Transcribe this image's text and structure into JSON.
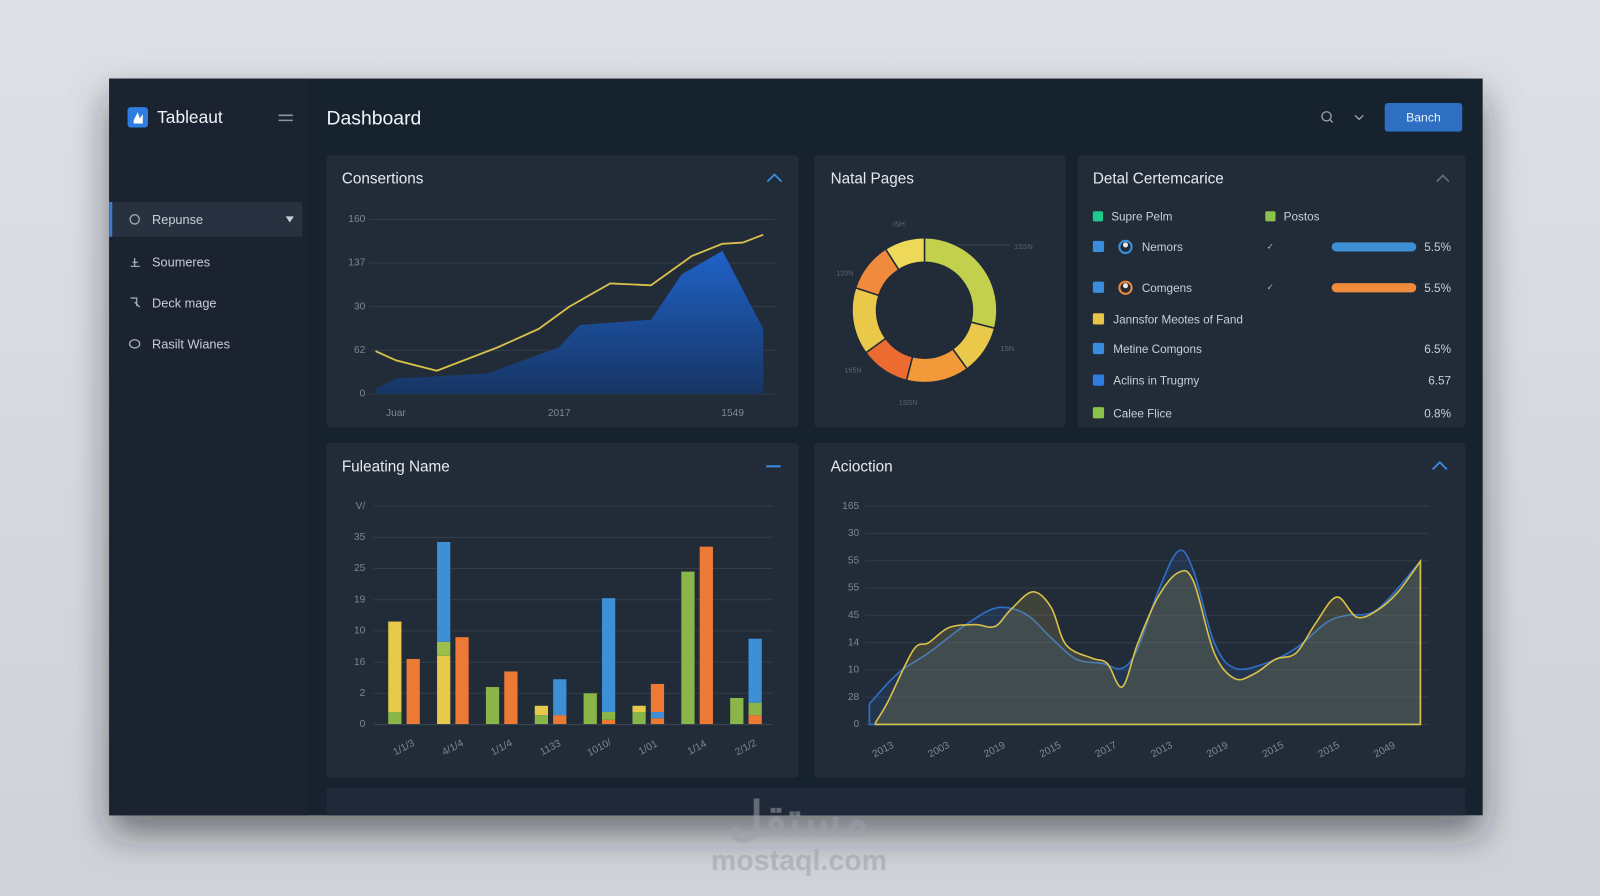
{
  "app": {
    "brand": "Tableaut",
    "title": "Dashboard",
    "button": "Banch"
  },
  "sidebar": {
    "items": [
      "Repunse",
      "Soumeres",
      "Deck mage",
      "Rasilt Wianes"
    ]
  },
  "chart_data": [
    {
      "type": "line",
      "title": "Consertions",
      "xlim": [
        0,
        38
      ],
      "xticks": [
        {
          "value": 2,
          "label": "Juar"
        },
        {
          "value": 18,
          "label": "2017"
        },
        {
          "value": 35,
          "label": "1549"
        }
      ],
      "ylim": [
        0,
        4
      ],
      "yticks": [
        0,
        {
          "value": 1,
          "label": "62"
        },
        {
          "value": 2,
          "label": "30"
        },
        {
          "value": 3,
          "label": "137"
        },
        {
          "value": 4,
          "label": "160"
        }
      ],
      "grid": true,
      "series": [
        {
          "color": "#1f62c9",
          "fill": true,
          "x": [
            0,
            2,
            6,
            11,
            18,
            20,
            27,
            30,
            34,
            38
          ],
          "values": [
            0.12,
            0.35,
            0.4,
            0.47,
            1.07,
            1.58,
            1.7,
            2.74,
            3.28,
            1.49
          ]
        },
        {
          "color": "#d8c04a",
          "x": [
            0,
            2,
            6,
            12,
            16,
            19,
            23,
            27,
            31,
            34,
            36,
            38
          ],
          "values": [
            0.98,
            0.77,
            0.53,
            1.07,
            1.49,
            2.0,
            2.53,
            2.49,
            3.16,
            3.44,
            3.47,
            3.65
          ]
        }
      ]
    },
    {
      "type": "pie",
      "title": "Natal Pages",
      "donut": true,
      "values": [
        29,
        11,
        14,
        11,
        15,
        11,
        9
      ],
      "colors": [
        "#c3d04e",
        "#e9c84a",
        "#f29a3a",
        "#ec6b30",
        "#e9c84a",
        "#f08a3c",
        "#edd85a"
      ],
      "annotations": [
        "ISH",
        "1SSN",
        "120N",
        "1SN",
        "165N",
        "1SSN"
      ]
    },
    {
      "type": "bar",
      "title": "Fuleating Name",
      "categories": [
        "1/1/3",
        "4/1/4",
        "1/1/4",
        "1133",
        "1010/",
        "1/01",
        "1/14",
        "2/1/2"
      ],
      "ylim": [
        0,
        7
      ],
      "yticks": [
        0,
        {
          "value": 1,
          "label": "2"
        },
        {
          "value": 2,
          "label": "16"
        },
        {
          "value": 3,
          "label": "10"
        },
        {
          "value": 4,
          "label": "19"
        },
        {
          "value": 5,
          "label": "25"
        },
        {
          "value": 6,
          "label": "35"
        },
        {
          "value": 7,
          "label": "V/"
        }
      ],
      "grid": true,
      "series": [
        {
          "color": "#8ab548",
          "stack": "left",
          "values": [
            0.4,
            0,
            1.2,
            0.3,
            1.0,
            0.4,
            4.9,
            0.85
          ]
        },
        {
          "color": "#e6c84a",
          "stack": "left",
          "values": [
            2.9,
            2.2,
            0,
            0.3,
            0,
            0.2,
            0,
            0
          ]
        },
        {
          "color": "#9bbf4a",
          "stack": "left",
          "values": [
            0,
            0.45,
            0,
            0,
            0,
            0,
            0,
            0
          ]
        },
        {
          "color": "#3d8fd6",
          "stack": "left",
          "values": [
            0,
            3.2,
            0,
            0,
            0,
            0,
            0,
            0
          ]
        },
        {
          "color": "#ec7a35",
          "stack": "right",
          "values": [
            2.1,
            2.8,
            1.7,
            0.3,
            0.15,
            0.2,
            5.7,
            0.3
          ]
        },
        {
          "color": "#8ab548",
          "stack": "right",
          "values": [
            0,
            0,
            0,
            0,
            0.25,
            0,
            0,
            0.4
          ]
        },
        {
          "color": "#3d8fd6",
          "stack": "right",
          "values": [
            0,
            0,
            0,
            1.15,
            3.65,
            0.2,
            0,
            2.05
          ]
        },
        {
          "color": "#ec7a35",
          "stack": "right",
          "values": [
            0,
            0,
            0,
            0,
            0,
            0.9,
            0,
            0
          ]
        }
      ]
    },
    {
      "type": "line",
      "title": "Acioction",
      "smooth": true,
      "xlim": [
        0,
        10
      ],
      "xticks": [
        {
          "value": 0.25,
          "label": "2013"
        },
        {
          "value": 1.25,
          "label": "2003"
        },
        {
          "value": 2.25,
          "label": "2019"
        },
        {
          "value": 3.25,
          "label": "2015"
        },
        {
          "value": 4.25,
          "label": "2017"
        },
        {
          "value": 5.25,
          "label": "2013"
        },
        {
          "value": 6.25,
          "label": "2019"
        },
        {
          "value": 7.25,
          "label": "2015"
        },
        {
          "value": 8.25,
          "label": "2015"
        },
        {
          "value": 9.25,
          "label": "2049"
        }
      ],
      "ylim": [
        0,
        8
      ],
      "yticks": [
        0,
        {
          "value": 1,
          "label": "28"
        },
        {
          "value": 2,
          "label": "10"
        },
        {
          "value": 3,
          "label": "14"
        },
        {
          "value": 4,
          "label": "45"
        },
        {
          "value": 5,
          "label": "55"
        },
        {
          "value": 6,
          "label": "55"
        },
        {
          "value": 7,
          "label": "30"
        },
        {
          "value": 8,
          "label": "165"
        }
      ],
      "grid": true,
      "series": [
        {
          "color": "#2f6fc8",
          "fill": true,
          "x": [
            0,
            0.51,
            1.06,
            1.61,
            2.16,
            2.53,
            2.89,
            3.26,
            3.72,
            4.18,
            4.54,
            4.82,
            5.18,
            5.55,
            5.82,
            6.19,
            6.56,
            7.11,
            7.66,
            8.21,
            8.57,
            9.12,
            9.89
          ],
          "values": [
            0.75,
            1.87,
            2.62,
            3.48,
            4.19,
            4.26,
            3.93,
            3.18,
            2.39,
            2.24,
            2.06,
            2.8,
            4.86,
            6.36,
            5.61,
            2.99,
            2.06,
            2.24,
            2.8,
            3.74,
            4.0,
            4.22,
            5.98
          ]
        },
        {
          "color": "#d8c04a",
          "fill": true,
          "x": [
            0.11,
            0.33,
            0.79,
            1.06,
            1.43,
            1.89,
            2.25,
            2.53,
            2.93,
            3.26,
            3.53,
            3.99,
            4.27,
            4.54,
            4.82,
            5.18,
            5.55,
            5.82,
            6.19,
            6.56,
            6.92,
            7.29,
            7.66,
            8.02,
            8.39,
            8.75,
            9.12,
            9.49,
            9.89
          ],
          "values": [
            0.07,
            0.82,
            2.73,
            2.99,
            3.55,
            3.66,
            3.59,
            4.19,
            4.86,
            4.3,
            2.92,
            2.43,
            2.24,
            1.38,
            2.99,
            4.67,
            5.57,
            5.23,
            2.62,
            1.68,
            1.87,
            2.39,
            2.62,
            3.74,
            4.67,
            3.93,
            4.19,
            4.86,
            5.98
          ]
        }
      ]
    }
  ],
  "detail_panel": {
    "title": "Detal Certemcarice",
    "columns": [
      {
        "label": "Supre Pelm",
        "color": "#1fc98e"
      },
      {
        "label": "Postos",
        "color": "#8bc34a"
      }
    ],
    "rows": [
      {
        "label": "Nemors",
        "color": "#3a8dde",
        "icon": true,
        "check": "✓",
        "bar_color": "#3d8fd6",
        "value": "5.5%"
      },
      {
        "label": "Comgens",
        "color": "#3a8dde",
        "icon": true,
        "check": "✓",
        "bar_color": "#f08a3c",
        "value": "5.5%"
      },
      {
        "label": "Jannsfor Meotes of Fand",
        "color": "#e8c547"
      },
      {
        "label": "Metine Comgons",
        "color": "#3a8dde",
        "value": "6.5%"
      },
      {
        "label": "Aclins in Trugmy",
        "color": "#2f7de1",
        "value": "6.57"
      },
      {
        "label": "Calee Flice",
        "color": "#8bc34a",
        "value": "0.8%"
      }
    ]
  },
  "watermark": {
    "arabic": "مستقل",
    "latin": "mostaql.com"
  }
}
